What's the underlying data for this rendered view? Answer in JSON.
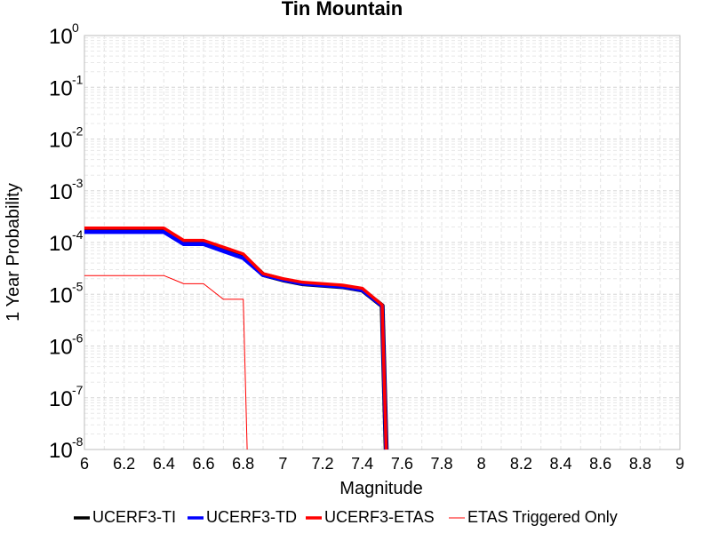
{
  "chart_data": {
    "type": "line",
    "title": "Tin Mountain",
    "xlabel": "Magnitude",
    "ylabel": "1 Year Probability",
    "xlim": [
      6,
      9
    ],
    "x_ticks": [
      "6",
      "6.2",
      "6.4",
      "6.6",
      "6.8",
      "7",
      "7.2",
      "7.4",
      "7.6",
      "7.8",
      "8",
      "8.2",
      "8.4",
      "8.6",
      "8.8",
      "9"
    ],
    "y_scale": "log",
    "ylim": [
      1e-08,
      1
    ],
    "y_ticks": [
      {
        "base": "10",
        "exp": "0"
      },
      {
        "base": "10",
        "exp": "-1"
      },
      {
        "base": "10",
        "exp": "-2"
      },
      {
        "base": "10",
        "exp": "-3"
      },
      {
        "base": "10",
        "exp": "-4"
      },
      {
        "base": "10",
        "exp": "-5"
      },
      {
        "base": "10",
        "exp": "-6"
      },
      {
        "base": "10",
        "exp": "-7"
      },
      {
        "base": "10",
        "exp": "-8"
      }
    ],
    "grid": true,
    "legend_position": "bottom",
    "series": [
      {
        "name": "UCERF3-TI",
        "color": "#000000",
        "x": [
          6.0,
          6.4,
          6.5,
          6.6,
          6.8,
          6.9,
          7.0,
          7.1,
          7.3,
          7.4,
          7.5,
          7.52
        ],
        "y": [
          0.00017,
          0.00017,
          0.0001,
          0.0001,
          5.5e-05,
          2.4e-05,
          1.9e-05,
          1.6e-05,
          1.4e-05,
          1.2e-05,
          6e-06,
          1e-08
        ]
      },
      {
        "name": "UCERF3-TD",
        "color": "#0000ff",
        "x": [
          6.0,
          6.4,
          6.5,
          6.6,
          6.8,
          6.9,
          7.0,
          7.1,
          7.3,
          7.4,
          7.5,
          7.52
        ],
        "y": [
          0.00016,
          0.00016,
          9.3e-05,
          9.3e-05,
          5e-05,
          2.35e-05,
          1.9e-05,
          1.6e-05,
          1.4e-05,
          1.2e-05,
          6e-06,
          1e-08
        ]
      },
      {
        "name": "UCERF3-ETAS",
        "color": "#ff0000",
        "x": [
          6.0,
          6.4,
          6.5,
          6.6,
          6.8,
          6.9,
          7.0,
          7.1,
          7.3,
          7.4,
          7.5,
          7.52
        ],
        "y": [
          0.00019,
          0.00019,
          0.00011,
          0.00011,
          6e-05,
          2.5e-05,
          2e-05,
          1.7e-05,
          1.5e-05,
          1.3e-05,
          6.2e-06,
          1e-08
        ]
      },
      {
        "name": "ETAS Triggered Only",
        "color": "#ff0000",
        "thin": true,
        "x": [
          6.0,
          6.4,
          6.5,
          6.6,
          6.7,
          6.8,
          6.82
        ],
        "y": [
          2.3e-05,
          2.3e-05,
          1.6e-05,
          1.6e-05,
          8e-06,
          8e-06,
          1e-08
        ]
      }
    ]
  }
}
